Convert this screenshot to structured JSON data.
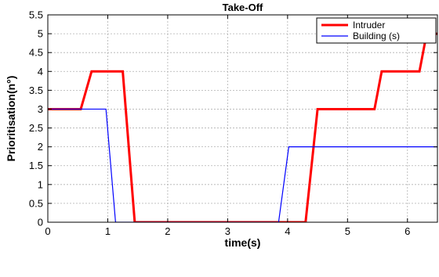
{
  "chart_data": {
    "type": "line",
    "title": "Take-Off",
    "xlabel": "time(s)",
    "ylabel": "Prioritisation(n°)",
    "xlim": [
      0,
      6.5
    ],
    "ylim": [
      0,
      5.5
    ],
    "x_ticks": [
      0,
      1,
      2,
      3,
      4,
      5,
      6
    ],
    "y_ticks": [
      0,
      0.5,
      1,
      1.5,
      2,
      2.5,
      3,
      3.5,
      4,
      4.5,
      5,
      5.5
    ],
    "x_tick_labels": [
      "0",
      "1",
      "2",
      "3",
      "4",
      "5",
      "6"
    ],
    "y_tick_labels": [
      "0",
      "0.5",
      "1",
      "1.5",
      "2",
      "2.5",
      "3",
      "3.5",
      "4",
      "4.5",
      "5",
      "5.5"
    ],
    "grid": true,
    "legend_position": "top-right",
    "series": [
      {
        "name": "Intruder",
        "color": "#ff0000",
        "x": [
          0,
          0.55,
          0.73,
          1.25,
          1.45,
          4.3,
          4.5,
          5.45,
          5.57,
          6.2,
          6.32,
          6.5
        ],
        "y": [
          3,
          3,
          4,
          4,
          0,
          0,
          3,
          3,
          4,
          4,
          5,
          5
        ]
      },
      {
        "name": "Building (s)",
        "color": "#0000ff",
        "x": [
          0,
          0.97,
          1.13,
          3.85,
          4.02,
          6.5
        ],
        "y": [
          3,
          3,
          0,
          0,
          2,
          2
        ]
      }
    ]
  }
}
